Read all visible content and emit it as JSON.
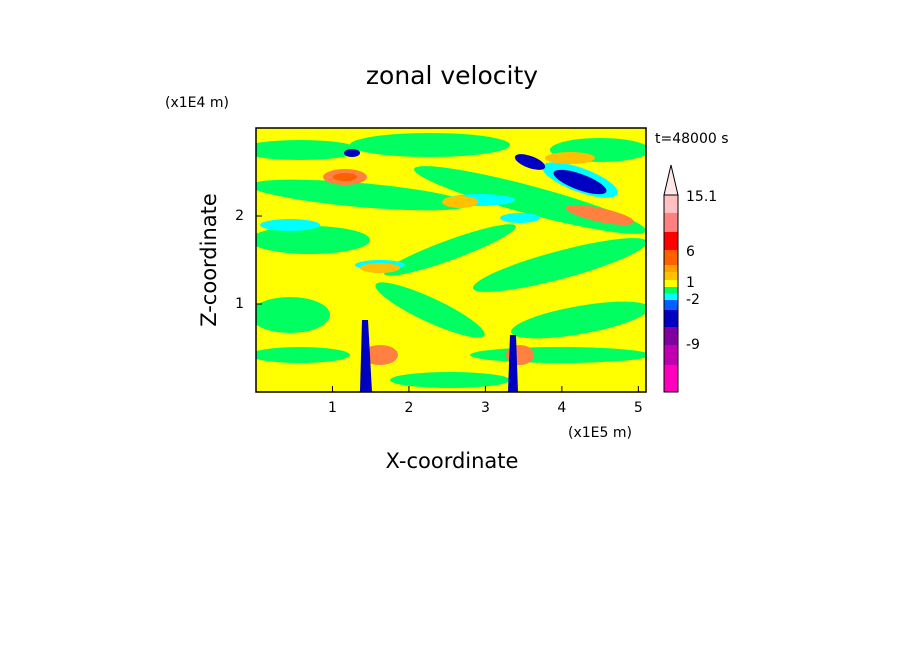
{
  "chart_data": {
    "type": "contour",
    "title": "zonal velocity",
    "x_label": "X-coordinate",
    "y_label": "Z-coordinate",
    "x_unit": "(x1E5 m)",
    "y_unit": "(x1E4 m)",
    "annotation": "t=48000 s",
    "xlim": [
      0,
      5.1
    ],
    "ylim": [
      0,
      3
    ],
    "xticks": [
      1,
      2,
      3,
      4,
      5
    ],
    "yticks": [
      1,
      2
    ],
    "colorbar": {
      "colors": [
        "#ff00c0",
        "#c000b0",
        "#8000a0",
        "#0000c0",
        "#0060ff",
        "#00ffff",
        "#00ff60",
        "#ffff00",
        "#ffc000",
        "#ffa000",
        "#ff6000",
        "#ff0000",
        "#ff8080",
        "#ffc0c0"
      ],
      "ticks": [
        15.1,
        6,
        1,
        -2,
        -9
      ]
    }
  }
}
